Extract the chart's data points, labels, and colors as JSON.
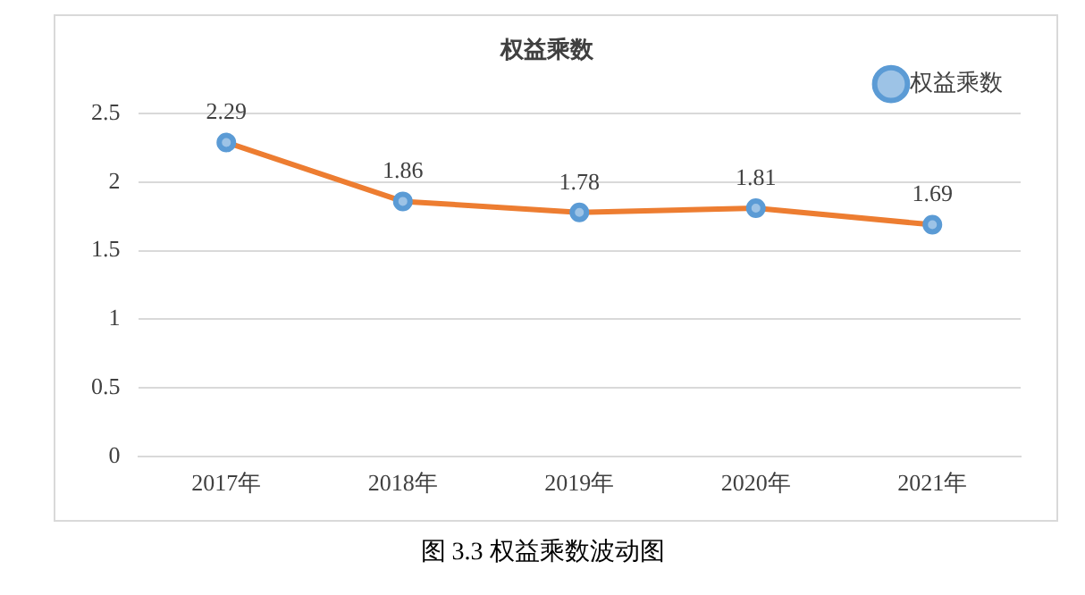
{
  "chart_data": {
    "type": "line",
    "title": "权益乘数",
    "categories": [
      "2017年",
      "2018年",
      "2019年",
      "2020年",
      "2021年"
    ],
    "series": [
      {
        "name": "权益乘数",
        "color": "#ed7d31",
        "values": [
          2.29,
          1.86,
          1.78,
          1.81,
          1.69
        ]
      }
    ],
    "ylim": [
      0,
      2.5
    ],
    "yticks": [
      0,
      0.5,
      1,
      1.5,
      2,
      2.5
    ],
    "grid": "y",
    "legend": "top right",
    "marker": "circle",
    "line_style": "solid",
    "data_labels": true,
    "annotations": [
      "图 3.3 权益乘数波动图"
    ]
  }
}
